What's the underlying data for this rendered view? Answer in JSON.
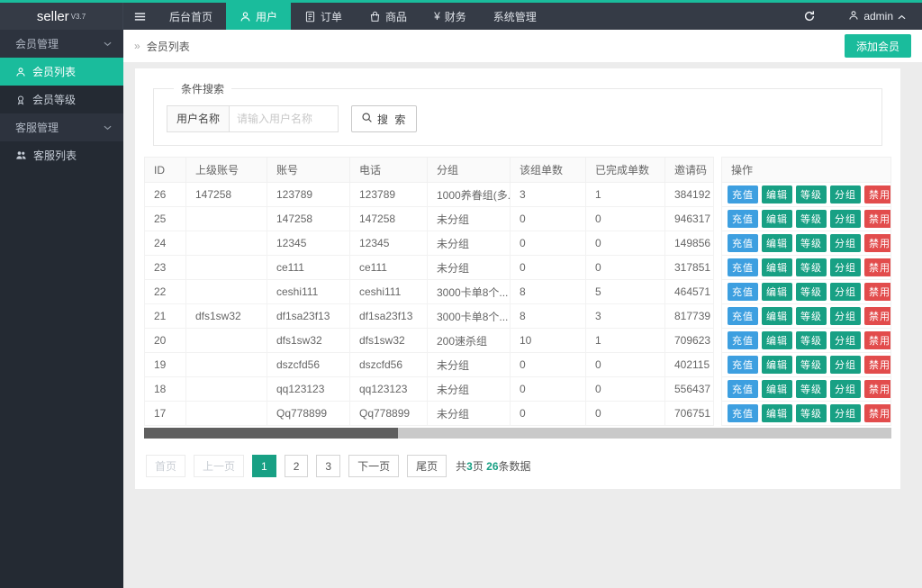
{
  "colors": {
    "accent": "#1abc9c",
    "action_blue": "#3d9fe0",
    "action_green": "#18a084",
    "action_red": "#e24c4c"
  },
  "topbar": {
    "logo_text": "seller",
    "logo_version": "V3.7",
    "menu": [
      {
        "label": "后台首页"
      },
      {
        "label": "用户"
      },
      {
        "label": "订单"
      },
      {
        "label": "商品"
      },
      {
        "label": "财务",
        "icon": "¥"
      },
      {
        "label": "系统管理"
      }
    ],
    "admin_label": "admin"
  },
  "sidebar": {
    "items": [
      {
        "label": "会员管理"
      },
      {
        "label": "会员列表"
      },
      {
        "label": "会员等级"
      },
      {
        "label": "客服管理"
      },
      {
        "label": "客服列表"
      }
    ]
  },
  "breadcrumb": {
    "arrow": "»",
    "label": "会员列表"
  },
  "page_actions": {
    "add_member": "添加会员"
  },
  "search": {
    "legend": "条件搜索",
    "field_label": "用户名称",
    "placeholder": "请输入用户名称",
    "button_label": "搜 索"
  },
  "table": {
    "headers": [
      "ID",
      "上级账号",
      "账号",
      "电话",
      "分组",
      "该组单数",
      "已完成单数",
      "邀请码"
    ],
    "action_header": "操作",
    "rows": [
      [
        "26",
        "147258",
        "123789",
        "123789",
        "1000养眷组(多...",
        "3",
        "1",
        "384192"
      ],
      [
        "25",
        "",
        "147258",
        "147258",
        "未分组",
        "0",
        "0",
        "946317"
      ],
      [
        "24",
        "",
        "12345",
        "12345",
        "未分组",
        "0",
        "0",
        "149856"
      ],
      [
        "23",
        "",
        "ce111",
        "ce111",
        "未分组",
        "0",
        "0",
        "317851"
      ],
      [
        "22",
        "",
        "ceshi111",
        "ceshi111",
        "3000卡单8个...",
        "8",
        "5",
        "464571"
      ],
      [
        "21",
        "dfs1sw32",
        "df1sa23f13",
        "df1sa23f13",
        "3000卡单8个...",
        "8",
        "3",
        "817739"
      ],
      [
        "20",
        "",
        "dfs1sw32",
        "dfs1sw32",
        "200速杀组",
        "10",
        "1",
        "709623"
      ],
      [
        "19",
        "",
        "dszcfd56",
        "dszcfd56",
        "未分组",
        "0",
        "0",
        "402115"
      ],
      [
        "18",
        "",
        "qq123123",
        "qq123123",
        "未分组",
        "0",
        "0",
        "556437"
      ],
      [
        "17",
        "",
        "Qq778899",
        "Qq778899",
        "未分组",
        "0",
        "0",
        "706751"
      ]
    ],
    "row_actions": [
      {
        "label": "充值",
        "name": "recharge",
        "color": "blue"
      },
      {
        "label": "编辑",
        "name": "edit",
        "color": "green"
      },
      {
        "label": "等级",
        "name": "level",
        "color": "green"
      },
      {
        "label": "分组",
        "name": "group",
        "color": "green"
      },
      {
        "label": "禁用",
        "name": "disable",
        "color": "red"
      }
    ]
  },
  "pagination": {
    "buttons": [
      {
        "label": "首页",
        "name": "first",
        "state": "disabled"
      },
      {
        "label": "上一页",
        "name": "prev",
        "state": "disabled"
      },
      {
        "label": "1",
        "name": "page-1",
        "state": "active"
      },
      {
        "label": "2",
        "name": "page-2",
        "state": "normal"
      },
      {
        "label": "3",
        "name": "page-3",
        "state": "normal"
      },
      {
        "label": "下一页",
        "name": "next",
        "state": "normal"
      },
      {
        "label": "尾页",
        "name": "last",
        "state": "normal"
      }
    ],
    "summary": {
      "prefix": "共",
      "pages": "3",
      "mid": "页 ",
      "count": "26",
      "suffix": "条数据"
    }
  }
}
